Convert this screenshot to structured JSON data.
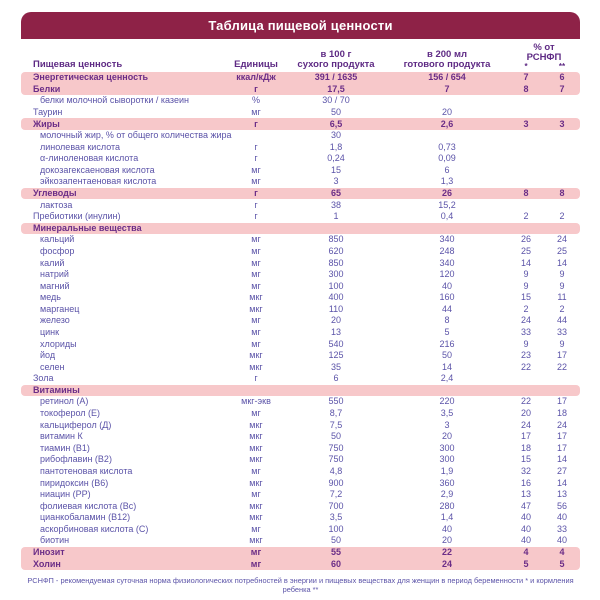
{
  "title": "Таблица пищевой ценности",
  "columns": {
    "name": "Пищевая ценность",
    "units": "Единицы",
    "per100_line1": "в 100 г",
    "per100_line2": "сухого продукта",
    "per200_line1": "в 200 мл",
    "per200_line2": "готового продукта",
    "pct_line1": "% от",
    "pct_line2": "РСНФП",
    "pct_mark1": "*",
    "pct_mark2": "**"
  },
  "colors": {
    "title_bar": "#8e2247",
    "highlight_row": "#f7c8ca",
    "bold_text": "#6b2d87",
    "regular_text": "#5b53a8"
  },
  "rows": [
    {
      "name": "Энергетическая ценность",
      "indent": false,
      "unit": "ккал/кДж",
      "per100": "391 / 1635",
      "per200": "156 / 654",
      "pct1": "7",
      "pct2": "6",
      "highlight": true
    },
    {
      "name": "Белки",
      "indent": false,
      "unit": "г",
      "per100": "17,5",
      "per200": "7",
      "pct1": "8",
      "pct2": "7",
      "highlight": true
    },
    {
      "name": "белки молочной сыворотки / казеин",
      "indent": true,
      "unit": "%",
      "per100": "30 / 70",
      "per200": "",
      "pct1": "",
      "pct2": "",
      "highlight": false
    },
    {
      "name": "Таурин",
      "indent": false,
      "unit": "мг",
      "per100": "50",
      "per200": "20",
      "pct1": "",
      "pct2": "",
      "highlight": false
    },
    {
      "name": "Жиры",
      "indent": false,
      "unit": "г",
      "per100": "6,5",
      "per200": "2,6",
      "pct1": "3",
      "pct2": "3",
      "highlight": true
    },
    {
      "name": "молочный жир, % от общего количества жира",
      "indent": true,
      "unit": "",
      "per100": "30",
      "per200": "",
      "pct1": "",
      "pct2": "",
      "highlight": false
    },
    {
      "name": "линолевая кислота",
      "indent": true,
      "unit": "г",
      "per100": "1,8",
      "per200": "0,73",
      "pct1": "",
      "pct2": "",
      "highlight": false
    },
    {
      "name": "α-линоленовая кислота",
      "indent": true,
      "unit": "г",
      "per100": "0,24",
      "per200": "0,09",
      "pct1": "",
      "pct2": "",
      "highlight": false
    },
    {
      "name": "докозагексаеновая кислота",
      "indent": true,
      "unit": "мг",
      "per100": "15",
      "per200": "6",
      "pct1": "",
      "pct2": "",
      "highlight": false
    },
    {
      "name": "эйкозапентаеновая кислота",
      "indent": true,
      "unit": "мг",
      "per100": "3",
      "per200": "1,3",
      "pct1": "",
      "pct2": "",
      "highlight": false
    },
    {
      "name": "Углеводы",
      "indent": false,
      "unit": "г",
      "per100": "65",
      "per200": "26",
      "pct1": "8",
      "pct2": "8",
      "highlight": true
    },
    {
      "name": "лактоза",
      "indent": true,
      "unit": "г",
      "per100": "38",
      "per200": "15,2",
      "pct1": "",
      "pct2": "",
      "highlight": false
    },
    {
      "name": "Пребиотики (инулин)",
      "indent": false,
      "unit": "г",
      "per100": "1",
      "per200": "0,4",
      "pct1": "2",
      "pct2": "2",
      "highlight": false
    },
    {
      "name": "Минеральные вещества",
      "indent": false,
      "unit": "",
      "per100": "",
      "per200": "",
      "pct1": "",
      "pct2": "",
      "highlight": true
    },
    {
      "name": "кальций",
      "indent": true,
      "unit": "мг",
      "per100": "850",
      "per200": "340",
      "pct1": "26",
      "pct2": "24",
      "highlight": false
    },
    {
      "name": "фосфор",
      "indent": true,
      "unit": "мг",
      "per100": "620",
      "per200": "248",
      "pct1": "25",
      "pct2": "25",
      "highlight": false
    },
    {
      "name": "калий",
      "indent": true,
      "unit": "мг",
      "per100": "850",
      "per200": "340",
      "pct1": "14",
      "pct2": "14",
      "highlight": false
    },
    {
      "name": "натрий",
      "indent": true,
      "unit": "мг",
      "per100": "300",
      "per200": "120",
      "pct1": "9",
      "pct2": "9",
      "highlight": false
    },
    {
      "name": "магний",
      "indent": true,
      "unit": "мг",
      "per100": "100",
      "per200": "40",
      "pct1": "9",
      "pct2": "9",
      "highlight": false
    },
    {
      "name": "медь",
      "indent": true,
      "unit": "мкг",
      "per100": "400",
      "per200": "160",
      "pct1": "15",
      "pct2": "11",
      "highlight": false
    },
    {
      "name": "марганец",
      "indent": true,
      "unit": "мкг",
      "per100": "110",
      "per200": "44",
      "pct1": "2",
      "pct2": "2",
      "highlight": false
    },
    {
      "name": "железо",
      "indent": true,
      "unit": "мг",
      "per100": "20",
      "per200": "8",
      "pct1": "24",
      "pct2": "44",
      "highlight": false
    },
    {
      "name": "цинк",
      "indent": true,
      "unit": "мг",
      "per100": "13",
      "per200": "5",
      "pct1": "33",
      "pct2": "33",
      "highlight": false
    },
    {
      "name": "хлориды",
      "indent": true,
      "unit": "мг",
      "per100": "540",
      "per200": "216",
      "pct1": "9",
      "pct2": "9",
      "highlight": false
    },
    {
      "name": "йод",
      "indent": true,
      "unit": "мкг",
      "per100": "125",
      "per200": "50",
      "pct1": "23",
      "pct2": "17",
      "highlight": false
    },
    {
      "name": "селен",
      "indent": true,
      "unit": "мкг",
      "per100": "35",
      "per200": "14",
      "pct1": "22",
      "pct2": "22",
      "highlight": false
    },
    {
      "name": "Зола",
      "indent": false,
      "unit": "г",
      "per100": "6",
      "per200": "2,4",
      "pct1": "",
      "pct2": "",
      "highlight": false
    },
    {
      "name": "Витамины",
      "indent": false,
      "unit": "",
      "per100": "",
      "per200": "",
      "pct1": "",
      "pct2": "",
      "highlight": true
    },
    {
      "name": "ретинол (А)",
      "indent": true,
      "unit": "мкг-экв",
      "per100": "550",
      "per200": "220",
      "pct1": "22",
      "pct2": "17",
      "highlight": false
    },
    {
      "name": "токоферол (Е)",
      "indent": true,
      "unit": "мг",
      "per100": "8,7",
      "per200": "3,5",
      "pct1": "20",
      "pct2": "18",
      "highlight": false
    },
    {
      "name": "кальциферол (Д)",
      "indent": true,
      "unit": "мкг",
      "per100": "7,5",
      "per200": "3",
      "pct1": "24",
      "pct2": "24",
      "highlight": false
    },
    {
      "name": "витамин К",
      "indent": true,
      "unit": "мкг",
      "per100": "50",
      "per200": "20",
      "pct1": "17",
      "pct2": "17",
      "highlight": false
    },
    {
      "name": "тиамин (В1)",
      "indent": true,
      "unit": "мкг",
      "per100": "750",
      "per200": "300",
      "pct1": "18",
      "pct2": "17",
      "highlight": false
    },
    {
      "name": "рибофлавин (В2)",
      "indent": true,
      "unit": "мкг",
      "per100": "750",
      "per200": "300",
      "pct1": "15",
      "pct2": "14",
      "highlight": false
    },
    {
      "name": "пантотеновая кислота",
      "indent": true,
      "unit": "мг",
      "per100": "4,8",
      "per200": "1,9",
      "pct1": "32",
      "pct2": "27",
      "highlight": false
    },
    {
      "name": "пиридоксин (В6)",
      "indent": true,
      "unit": "мкг",
      "per100": "900",
      "per200": "360",
      "pct1": "16",
      "pct2": "14",
      "highlight": false
    },
    {
      "name": "ниацин (РР)",
      "indent": true,
      "unit": "мг",
      "per100": "7,2",
      "per200": "2,9",
      "pct1": "13",
      "pct2": "13",
      "highlight": false
    },
    {
      "name": "фолиевая кислота (Вс)",
      "indent": true,
      "unit": "мкг",
      "per100": "700",
      "per200": "280",
      "pct1": "47",
      "pct2": "56",
      "highlight": false
    },
    {
      "name": "цианкобаламин (В12)",
      "indent": true,
      "unit": "мкг",
      "per100": "3,5",
      "per200": "1,4",
      "pct1": "40",
      "pct2": "40",
      "highlight": false
    },
    {
      "name": "аскорбиновая кислота (С)",
      "indent": true,
      "unit": "мг",
      "per100": "100",
      "per200": "40",
      "pct1": "40",
      "pct2": "33",
      "highlight": false
    },
    {
      "name": "биотин",
      "indent": true,
      "unit": "мкг",
      "per100": "50",
      "per200": "20",
      "pct1": "40",
      "pct2": "40",
      "highlight": false
    },
    {
      "name": "Инозит",
      "indent": false,
      "unit": "мг",
      "per100": "55",
      "per200": "22",
      "pct1": "4",
      "pct2": "4",
      "highlight": true
    },
    {
      "name": "Холин",
      "indent": false,
      "unit": "мг",
      "per100": "60",
      "per200": "24",
      "pct1": "5",
      "pct2": "5",
      "highlight": true
    }
  ],
  "footnote": "РСНФП - рекомендуемая суточная норма физиологических потребностей в энергии и пищевых веществах для женщин в период беременности * и кормления ребенка **"
}
